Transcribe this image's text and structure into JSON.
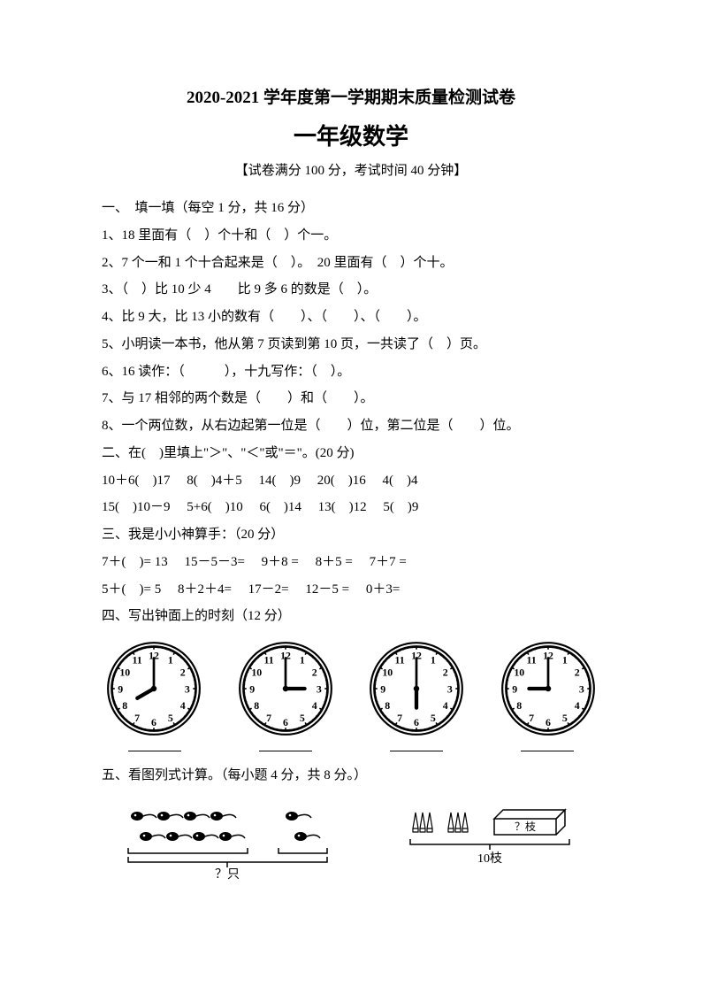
{
  "header": {
    "title": "2020-2021 学年度第一学期期末质量检测试卷",
    "subtitle": "一年级数学",
    "info": "【试卷满分 100 分，考试时间 40 分钟】"
  },
  "section1": {
    "heading": "一、　填一填（每空 1 分，共 16 分）",
    "q1": "1、18 里面有（　）个十和（　）个一。",
    "q2": "2、7 个一和 1 个十合起来是（　）。　20 里面有（　）个十。",
    "q3": "3、（　）比 10 少 4　　比 9 多 6 的数是（　）。",
    "q4": "4、比 9 大，比 13 小的数有（　　）、（　　）、（　　）。",
    "q5": "5、小明读一本书，他从第 7 页读到第 10 页，一共读了（　）页。",
    "q6": "6、16 读作：（　　　），十九写作：（　）。",
    "q7": "7、与 17 相邻的两个数是（　　）和（　　）。",
    "q8": "8、一个两位数，从右边起第一位是（　　）位，第二位是（　　）位。"
  },
  "section2": {
    "heading": "二、在(　)里填上\"＞\"、\"＜\"或\"＝\"。(20 分)",
    "row1": "10＋6(　)17　  8(　)4＋5　  14(　)9　  20(　)16　    4(　)4",
    "row2": "15(　)10－9　 5+6(　)10　  6(　)14　  13(　)12　   5(　)9"
  },
  "section3": {
    "heading": "三、我是小小神算手：（20 分）",
    "row1": "7＋(　)= 13　 15－5－3=　    9＋8 =　    8＋5 =　    7＋7 =",
    "row2": "5＋(　)= 5　  8＋2＋4=　    17－2=　   12－5 =　    0＋3="
  },
  "section4": {
    "heading": "四、写出钟面上的时刻（12 分）",
    "clocks": [
      {
        "hour": 8,
        "minute": 0
      },
      {
        "hour": 3,
        "minute": 0
      },
      {
        "hour": 6,
        "minute": 0
      },
      {
        "hour": 9,
        "minute": 0
      }
    ]
  },
  "section5": {
    "heading": "五、看图列式计算。（每小题 4 分，共 8 分。）",
    "left_label": "？只",
    "right_label1": "？枝",
    "right_label2": "10枝"
  },
  "colors": {
    "text": "#000000",
    "background": "#ffffff"
  },
  "fonts": {
    "body_size": 15,
    "title_size": 19,
    "subtitle_size": 26
  }
}
